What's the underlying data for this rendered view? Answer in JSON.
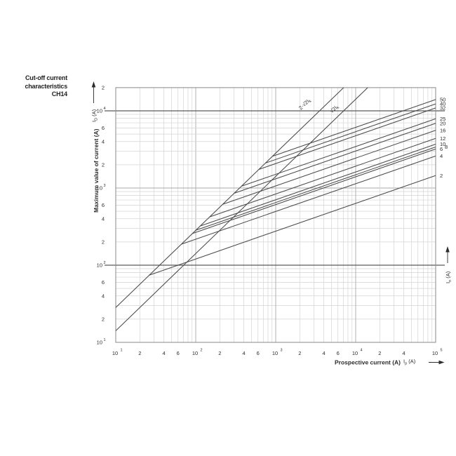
{
  "title": {
    "line1": "Cut-off current",
    "line2": "characteristics",
    "line3": "CH14"
  },
  "colors": {
    "text": "#2b2b2b",
    "curve": "#4a4a4a",
    "grid_minor": "#d4d4d4",
    "grid_major": "#a8a8a8",
    "reference_line": "#5a5a5a",
    "border": "#8a8a8a"
  },
  "x_axis": {
    "label": "Prospective current (A)",
    "symbol_base": "I",
    "symbol_sub": "p",
    "symbol_suffix": " (A)",
    "ticks": [
      {
        "v": 10,
        "t": "10",
        "sup": "1"
      },
      {
        "v": 20,
        "t": "2"
      },
      {
        "v": 40,
        "t": "4"
      },
      {
        "v": 60,
        "t": "6"
      },
      {
        "v": 100,
        "t": "10",
        "sup": "2"
      },
      {
        "v": 200,
        "t": "2"
      },
      {
        "v": 400,
        "t": "4"
      },
      {
        "v": 600,
        "t": "6"
      },
      {
        "v": 1000,
        "t": "10",
        "sup": "3"
      },
      {
        "v": 2000,
        "t": "2"
      },
      {
        "v": 4000,
        "t": "4"
      },
      {
        "v": 6000,
        "t": "6"
      },
      {
        "v": 10000,
        "t": "10",
        "sup": "4"
      },
      {
        "v": 20000,
        "t": "2"
      },
      {
        "v": 40000,
        "t": "4"
      },
      {
        "v": 100000,
        "t": "10",
        "sup": "5"
      }
    ]
  },
  "y_axis": {
    "label": "Maximum value of current (A)",
    "symbol_base": "I",
    "symbol_sub": "D",
    "symbol_suffix": " (A)",
    "ticks": [
      {
        "v": 20000,
        "t": "2"
      },
      {
        "v": 10000,
        "t": "10",
        "sup": "4"
      },
      {
        "v": 6000,
        "t": "6"
      },
      {
        "v": 4000,
        "t": "4"
      },
      {
        "v": 2000,
        "t": "2"
      },
      {
        "v": 1000,
        "t": "10",
        "sup": "3"
      },
      {
        "v": 600,
        "t": "6"
      },
      {
        "v": 400,
        "t": "4"
      },
      {
        "v": 200,
        "t": "2"
      },
      {
        "v": 100,
        "t": "10",
        "sup": "2"
      },
      {
        "v": 60,
        "t": "6"
      },
      {
        "v": 40,
        "t": "4"
      },
      {
        "v": 20,
        "t": "2"
      },
      {
        "v": 10,
        "t": "10",
        "sup": "1"
      }
    ]
  },
  "right_axis": {
    "symbol_base": "I",
    "symbol_sub": "n",
    "symbol_suffix": " (A)"
  },
  "chart_data": {
    "type": "line",
    "title": "Cut-off current characteristics CH14",
    "x_scale": "log",
    "y_scale": "log",
    "xlim": [
      10,
      100000
    ],
    "ylim": [
      10,
      20000
    ],
    "xlabel": "Prospective current (A)",
    "ylabel": "Maximum value of current (A)",
    "grid": true,
    "reference_lines_y": [
      10000,
      100
    ],
    "envelope_lines": [
      {
        "label_base": "2·√2I",
        "label_sub": "k",
        "factor": 2.828
      },
      {
        "label_base": "√2I",
        "label_sub": "k",
        "factor": 1.414
      }
    ],
    "series": [
      {
        "rating": "50",
        "points": [
          [
            911,
            2577
          ],
          [
            100000,
            14000
          ]
        ]
      },
      {
        "rating": "40",
        "points": [
          [
            745,
            2107
          ],
          [
            100000,
            12300
          ]
        ]
      },
      {
        "rating": "32",
        "points": [
          [
            616,
            1742
          ],
          [
            100000,
            10900
          ]
        ]
      },
      {
        "rating": "25",
        "points": [
          [
            373,
            1055
          ],
          [
            100000,
            7900
          ]
        ]
      },
      {
        "rating": "20",
        "points": [
          [
            302,
            854
          ],
          [
            100000,
            6900
          ]
        ]
      },
      {
        "rating": "16",
        "points": [
          [
            217,
            614
          ],
          [
            100000,
            5600
          ]
        ]
      },
      {
        "rating": "12",
        "points": [
          [
            149,
            421
          ],
          [
            100000,
            4400
          ]
        ]
      },
      {
        "rating": "10",
        "points": [
          [
            114,
            322
          ],
          [
            100000,
            3700
          ]
        ]
      },
      {
        "rating": "8",
        "points": [
          [
            100,
            283
          ],
          [
            100000,
            3400
          ]
        ],
        "label_dx": 7
      },
      {
        "rating": "6",
        "points": [
          [
            91,
            257
          ],
          [
            100000,
            3200
          ]
        ]
      },
      {
        "rating": "4",
        "points": [
          [
            66,
            187
          ],
          [
            100000,
            2600
          ]
        ]
      },
      {
        "rating": "2",
        "points": [
          [
            26,
            74
          ],
          [
            100000,
            1450
          ]
        ]
      }
    ]
  }
}
